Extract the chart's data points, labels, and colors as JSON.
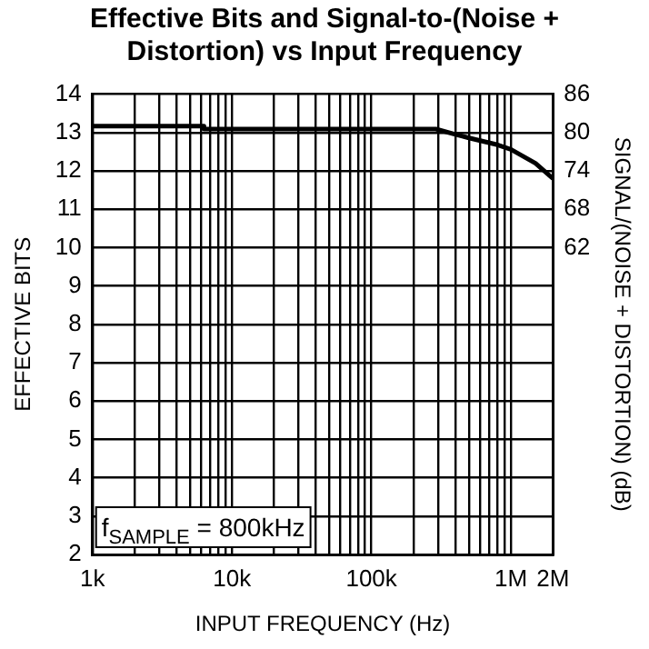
{
  "chart_data": {
    "type": "line",
    "title": "Effective Bits and Signal-to-(Noise + Distortion) vs Input Frequency",
    "xlabel": "INPUT FREQUENCY (Hz)",
    "ylabel": "EFFECTIVE BITS",
    "y2label": "SIGNAL/(NOISE + DISTORTION) (dB)",
    "x": [
      1000,
      6300,
      6300,
      100000,
      290000,
      400000,
      500000,
      800000,
      1000000,
      1500000,
      2000000
    ],
    "series": [
      {
        "color": "#000000",
        "values": [
          13.17,
          13.17,
          13.09,
          13.09,
          13.09,
          12.95,
          12.86,
          12.68,
          12.56,
          12.2,
          11.8
        ]
      }
    ],
    "log": "x",
    "xlim": [
      1000,
      2000000
    ],
    "xticks": [
      {
        "value": 1000,
        "label": "1k"
      },
      {
        "value": 2000,
        "label": null
      },
      {
        "value": 3000,
        "label": null
      },
      {
        "value": 4000,
        "label": null
      },
      {
        "value": 5000,
        "label": null
      },
      {
        "value": 6000,
        "label": null
      },
      {
        "value": 7000,
        "label": null
      },
      {
        "value": 8000,
        "label": null
      },
      {
        "value": 9000,
        "label": null
      },
      {
        "value": 10000,
        "label": "10k"
      },
      {
        "value": 20000,
        "label": null
      },
      {
        "value": 30000,
        "label": null
      },
      {
        "value": 40000,
        "label": null
      },
      {
        "value": 50000,
        "label": null
      },
      {
        "value": 60000,
        "label": null
      },
      {
        "value": 70000,
        "label": null
      },
      {
        "value": 80000,
        "label": null
      },
      {
        "value": 90000,
        "label": null
      },
      {
        "value": 100000,
        "label": "100k"
      },
      {
        "value": 200000,
        "label": null
      },
      {
        "value": 300000,
        "label": null
      },
      {
        "value": 400000,
        "label": null
      },
      {
        "value": 500000,
        "label": null
      },
      {
        "value": 600000,
        "label": null
      },
      {
        "value": 700000,
        "label": null
      },
      {
        "value": 800000,
        "label": null
      },
      {
        "value": 900000,
        "label": null
      },
      {
        "value": 1000000,
        "label": "1M"
      },
      {
        "value": 2000000,
        "label": "2M"
      }
    ],
    "ylim": [
      2,
      14
    ],
    "yticks": [
      2,
      3,
      4,
      5,
      6,
      7,
      8,
      9,
      10,
      11,
      12,
      13,
      14
    ],
    "y2lim": [
      14,
      86
    ],
    "y2ticks": [
      62,
      68,
      74,
      80,
      86
    ],
    "grid": true,
    "legend": false,
    "marker": "none",
    "line_style": "solid",
    "annotations": [
      "f$_{SAMPLE}$ = 800kHz"
    ]
  }
}
